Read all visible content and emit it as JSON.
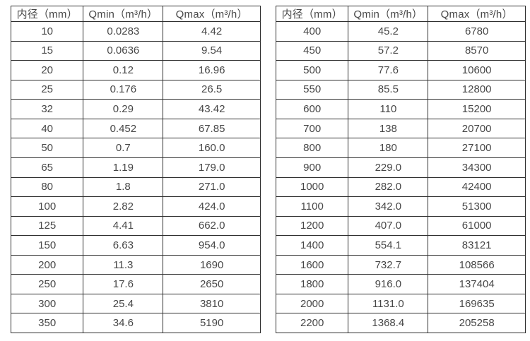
{
  "tables": [
    {
      "name": "small-diameter-flow-rates",
      "headers": [
        "内径（mm）",
        "Qmin（m³/h）",
        "Qmax（m³/h）"
      ],
      "rows": [
        [
          "10",
          "0.0283",
          "4.42"
        ],
        [
          "15",
          "0.0636",
          "9.54"
        ],
        [
          "20",
          "0.12",
          "16.96"
        ],
        [
          "25",
          "0.176",
          "26.5"
        ],
        [
          "32",
          "0.29",
          "43.42"
        ],
        [
          "40",
          "0.452",
          "67.85"
        ],
        [
          "50",
          "0.7",
          "160.0"
        ],
        [
          "65",
          "1.19",
          "179.0"
        ],
        [
          "80",
          "1.8",
          "271.0"
        ],
        [
          "100",
          "2.82",
          "424.0"
        ],
        [
          "125",
          "4.41",
          "662.0"
        ],
        [
          "150",
          "6.63",
          "954.0"
        ],
        [
          "200",
          "11.3",
          "1690"
        ],
        [
          "250",
          "17.6",
          "2650"
        ],
        [
          "300",
          "25.4",
          "3810"
        ],
        [
          "350",
          "34.6",
          "5190"
        ]
      ]
    },
    {
      "name": "large-diameter-flow-rates",
      "headers": [
        "内径（mm）",
        "Qmin（m³/h）",
        "Qmax（m³/h）"
      ],
      "rows": [
        [
          "400",
          "45.2",
          "6780"
        ],
        [
          "450",
          "57.2",
          "8570"
        ],
        [
          "500",
          "77.6",
          "10600"
        ],
        [
          "550",
          "85.5",
          "12800"
        ],
        [
          "600",
          "110",
          "15200"
        ],
        [
          "700",
          "138",
          "20700"
        ],
        [
          "800",
          "180",
          "27100"
        ],
        [
          "900",
          "229.0",
          "34300"
        ],
        [
          "1000",
          "282.0",
          "42400"
        ],
        [
          "1100",
          "342.0",
          "51300"
        ],
        [
          "1200",
          "407.0",
          "61000"
        ],
        [
          "1400",
          "554.1",
          "83121"
        ],
        [
          "1600",
          "732.7",
          "108566"
        ],
        [
          "1800",
          "916.0",
          "137404"
        ],
        [
          "2000",
          "1131.0",
          "169635"
        ],
        [
          "2200",
          "1368.4",
          "205258"
        ]
      ]
    }
  ],
  "colors": {
    "border": "#2f2f2f",
    "text": "#474747",
    "background": "#ffffff"
  }
}
